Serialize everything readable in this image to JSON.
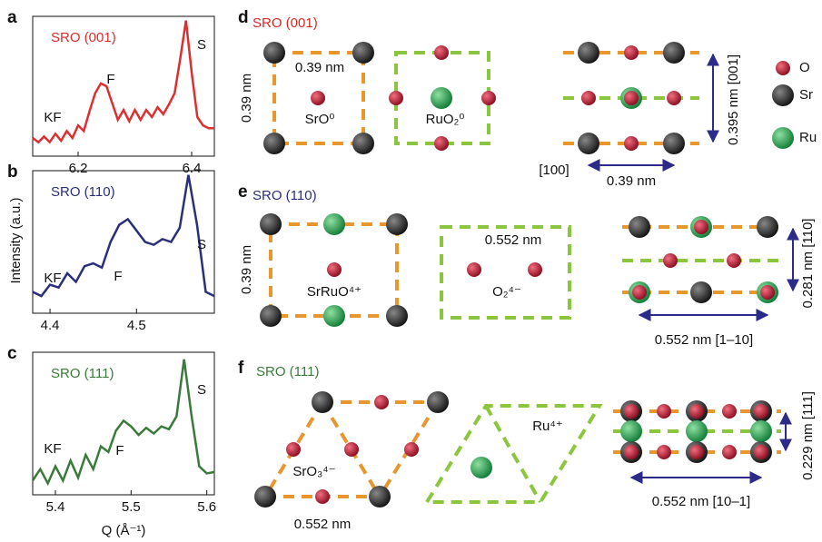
{
  "chart_data": [
    {
      "type": "line",
      "panel": "a",
      "annotations": [
        "KF",
        "F",
        "S"
      ],
      "x": [
        6.12,
        6.13,
        6.14,
        6.15,
        6.16,
        6.17,
        6.18,
        6.19,
        6.2,
        6.21,
        6.22,
        6.23,
        6.24,
        6.25,
        6.26,
        6.27,
        6.28,
        6.29,
        6.3,
        6.31,
        6.32,
        6.33,
        6.34,
        6.35,
        6.36,
        6.37,
        6.38,
        6.39,
        6.4,
        6.41,
        6.42,
        6.43,
        6.44
      ],
      "series": [
        {
          "name": "SRO (001)",
          "color": "#dc2f2f",
          "values": [
            0.13,
            0.1,
            0.14,
            0.1,
            0.16,
            0.11,
            0.18,
            0.13,
            0.22,
            0.18,
            0.32,
            0.45,
            0.52,
            0.5,
            0.38,
            0.26,
            0.33,
            0.25,
            0.33,
            0.26,
            0.33,
            0.28,
            0.35,
            0.3,
            0.37,
            0.45,
            0.7,
            0.97,
            0.6,
            0.28,
            0.22,
            0.2,
            0.2
          ]
        }
      ],
      "xlim": [
        6.12,
        6.44
      ],
      "xticks": [
        6.2,
        6.4
      ],
      "ylim": [
        0,
        1
      ]
    },
    {
      "type": "line",
      "panel": "b",
      "annotations": [
        "KF",
        "F",
        "S"
      ],
      "ylabel": "Intensity (a.u.)",
      "x": [
        4.38,
        4.39,
        4.4,
        4.41,
        4.42,
        4.43,
        4.44,
        4.45,
        4.46,
        4.47,
        4.48,
        4.49,
        4.5,
        4.51,
        4.52,
        4.53,
        4.54,
        4.55,
        4.56,
        4.57,
        4.58,
        4.59
      ],
      "series": [
        {
          "name": "SRO (110)",
          "color": "#2a2f7a",
          "values": [
            0.15,
            0.12,
            0.2,
            0.18,
            0.28,
            0.22,
            0.33,
            0.35,
            0.32,
            0.5,
            0.62,
            0.66,
            0.58,
            0.5,
            0.48,
            0.52,
            0.5,
            0.6,
            0.97,
            0.62,
            0.15,
            0.12
          ]
        }
      ],
      "xlim": [
        4.38,
        4.59
      ],
      "xticks": [
        4.4,
        4.5
      ],
      "ylim": [
        0,
        1
      ]
    },
    {
      "type": "line",
      "panel": "c",
      "annotations": [
        "KF",
        "F",
        "S"
      ],
      "xlabel": "Q (Å⁻¹)",
      "x": [
        5.37,
        5.38,
        5.39,
        5.4,
        5.41,
        5.42,
        5.43,
        5.44,
        5.45,
        5.46,
        5.47,
        5.48,
        5.49,
        5.5,
        5.51,
        5.52,
        5.53,
        5.54,
        5.55,
        5.56,
        5.57,
        5.58,
        5.59,
        5.6,
        5.61
      ],
      "series": [
        {
          "name": "SRO (111)",
          "color": "#3a7a3a",
          "values": [
            0.1,
            0.18,
            0.08,
            0.2,
            0.1,
            0.24,
            0.12,
            0.28,
            0.18,
            0.34,
            0.3,
            0.45,
            0.52,
            0.48,
            0.42,
            0.47,
            0.43,
            0.48,
            0.46,
            0.55,
            0.95,
            0.55,
            0.2,
            0.15,
            0.16
          ]
        }
      ],
      "xlim": [
        5.37,
        5.61
      ],
      "xticks": [
        5.4,
        5.5,
        5.6
      ],
      "ylim": [
        0,
        1
      ]
    }
  ],
  "panels": [
    {
      "letter": "d",
      "title": "SRO (001)",
      "labels": [
        "0.39 nm",
        "0.39 nm",
        "SrO⁰",
        "RuO₂⁰",
        "[100]",
        "0.39 nm",
        "0.395 nm [001]"
      ]
    },
    {
      "letter": "e",
      "title": "SRO (110)",
      "labels": [
        "0.39 nm",
        "SrRuO⁴⁺",
        "0.552 nm",
        "O₂⁴⁻",
        "0.552 nm [1–10]",
        "0.281 nm [110]"
      ]
    },
    {
      "letter": "f",
      "title": "SRO (111)",
      "labels": [
        "SrO₃⁴⁻",
        "0.552 nm",
        "Ru⁴⁺",
        "0.552 nm [10–1]",
        "0.229 nm [111]"
      ]
    }
  ],
  "legend": [
    "O",
    "Sr",
    "Ru"
  ]
}
